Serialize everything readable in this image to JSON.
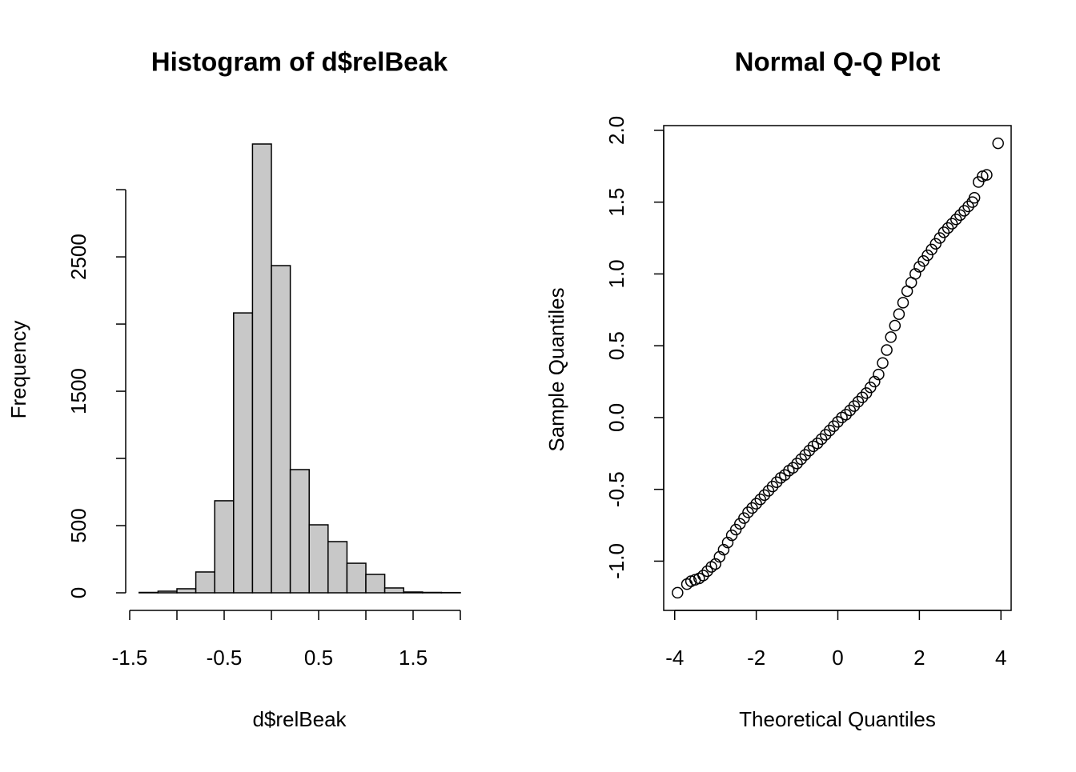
{
  "chart_data": [
    {
      "type": "histogram",
      "title": "Histogram of d$relBeak",
      "xlabel": "d$relBeak",
      "ylabel": "Frequency",
      "bins": [
        -1.4,
        -1.2,
        -1.0,
        -0.8,
        -0.6,
        -0.4,
        -0.2,
        0.0,
        0.2,
        0.4,
        0.6,
        0.8,
        1.0,
        1.2,
        1.4,
        1.6,
        1.8,
        2.0
      ],
      "values": [
        3,
        12,
        30,
        155,
        685,
        2083,
        3340,
        2435,
        917,
        506,
        381,
        220,
        137,
        36,
        6,
        3,
        2
      ],
      "color": "#c8c8c8",
      "xlim": [
        -1.5,
        2.0
      ],
      "ylim": [
        0,
        3340
      ],
      "xticks": [
        -1.5,
        -0.5,
        0.5,
        1.5
      ],
      "xticks_unlabeled": [
        -1.0,
        0.0,
        1.0,
        2.0
      ],
      "yticks": [
        0,
        500,
        1500,
        2500
      ],
      "yticks_unlabeled": [
        1000,
        2000,
        3000
      ]
    },
    {
      "type": "scatter",
      "title": "Normal Q-Q Plot",
      "xlabel": "Theoretical Quantiles",
      "ylabel": "Sample Quantiles",
      "x": [
        -3.93,
        -3.7,
        -3.6,
        -3.5,
        -3.4,
        -3.3,
        -3.2,
        -3.1,
        -3.0,
        -2.9,
        -2.8,
        -2.7,
        -2.6,
        -2.5,
        -2.4,
        -2.3,
        -2.2,
        -2.1,
        -2.0,
        -1.9,
        -1.8,
        -1.7,
        -1.6,
        -1.5,
        -1.4,
        -1.3,
        -1.2,
        -1.1,
        -1.0,
        -0.9,
        -0.8,
        -0.7,
        -0.6,
        -0.5,
        -0.4,
        -0.3,
        -0.2,
        -0.1,
        0.0,
        0.1,
        0.2,
        0.3,
        0.4,
        0.5,
        0.6,
        0.7,
        0.8,
        0.9,
        1.0,
        1.1,
        1.2,
        1.3,
        1.4,
        1.5,
        1.6,
        1.7,
        1.8,
        1.9,
        2.0,
        2.1,
        2.2,
        2.3,
        2.4,
        2.5,
        2.6,
        2.7,
        2.8,
        2.9,
        3.0,
        3.1,
        3.2,
        3.3,
        3.35,
        3.45,
        3.55,
        3.65,
        3.93
      ],
      "values": [
        -1.22,
        -1.16,
        -1.14,
        -1.13,
        -1.12,
        -1.1,
        -1.07,
        -1.04,
        -1.02,
        -0.97,
        -0.92,
        -0.87,
        -0.82,
        -0.78,
        -0.74,
        -0.7,
        -0.66,
        -0.63,
        -0.6,
        -0.57,
        -0.54,
        -0.51,
        -0.48,
        -0.45,
        -0.42,
        -0.4,
        -0.37,
        -0.35,
        -0.32,
        -0.29,
        -0.26,
        -0.23,
        -0.2,
        -0.18,
        -0.15,
        -0.12,
        -0.09,
        -0.06,
        -0.03,
        0.0,
        0.02,
        0.05,
        0.08,
        0.11,
        0.14,
        0.17,
        0.21,
        0.25,
        0.3,
        0.38,
        0.47,
        0.56,
        0.64,
        0.72,
        0.8,
        0.88,
        0.94,
        1.0,
        1.05,
        1.09,
        1.13,
        1.17,
        1.21,
        1.25,
        1.29,
        1.32,
        1.35,
        1.38,
        1.41,
        1.44,
        1.47,
        1.5,
        1.53,
        1.64,
        1.68,
        1.69,
        1.91
      ],
      "color": "#000000",
      "xlim": [
        -4.27,
        4.25
      ],
      "ylim": [
        -1.343,
        2.033
      ],
      "xticks": [
        -4,
        -2,
        0,
        2,
        4
      ],
      "yticks": [
        {
          "value": -1,
          "label": "-1.0"
        },
        -0.5,
        {
          "value": 0,
          "label": "0.0"
        },
        0.5,
        {
          "value": 1,
          "label": "1.0"
        },
        1.5,
        {
          "value": 2,
          "label": "2.0"
        }
      ],
      "box": true
    }
  ]
}
